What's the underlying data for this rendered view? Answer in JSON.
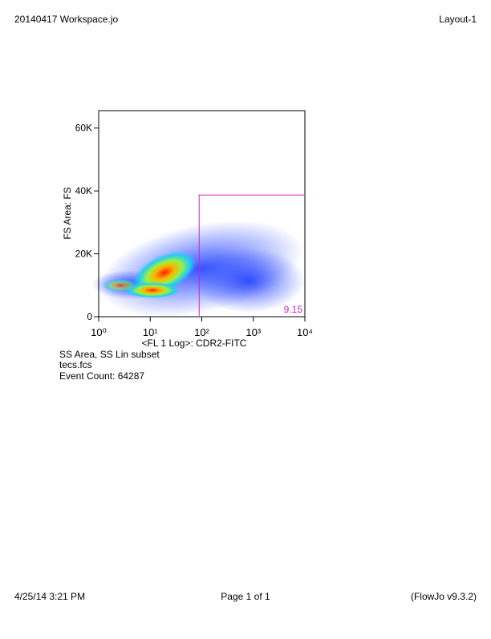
{
  "header": {
    "left": "20140417 Workspace.jo",
    "right": "Layout-1"
  },
  "footer": {
    "left": "4/25/14 3:21 PM",
    "center": "Page 1 of 1",
    "right": "(FlowJo v9.3.2)"
  },
  "chart_data": {
    "type": "density",
    "x_label": "<FL 1 Log>: CDR2-FITC",
    "y_label": "FS Area: FS",
    "xscale": "log",
    "xlim": [
      1,
      10000
    ],
    "xticks": [
      {
        "value": 1,
        "label": "10⁰"
      },
      {
        "value": 10,
        "label": "10¹"
      },
      {
        "value": 100,
        "label": "10²"
      },
      {
        "value": 1000,
        "label": "10³"
      },
      {
        "value": 10000,
        "label": "10⁴"
      }
    ],
    "ylim": [
      0,
      65536
    ],
    "yticks": [
      0,
      {
        "value": 20000,
        "label": "20K"
      },
      {
        "value": 40000,
        "label": "40K"
      },
      {
        "value": 60000,
        "label": "60K"
      }
    ],
    "gate": {
      "x": [
        89,
        10000
      ],
      "y": [
        0,
        38700
      ],
      "percent": 9.15,
      "color": "#d020c8"
    },
    "caption": [
      "SS Area, SS Lin subset",
      "tecs.fcs",
      "Event Count: 64287"
    ]
  }
}
